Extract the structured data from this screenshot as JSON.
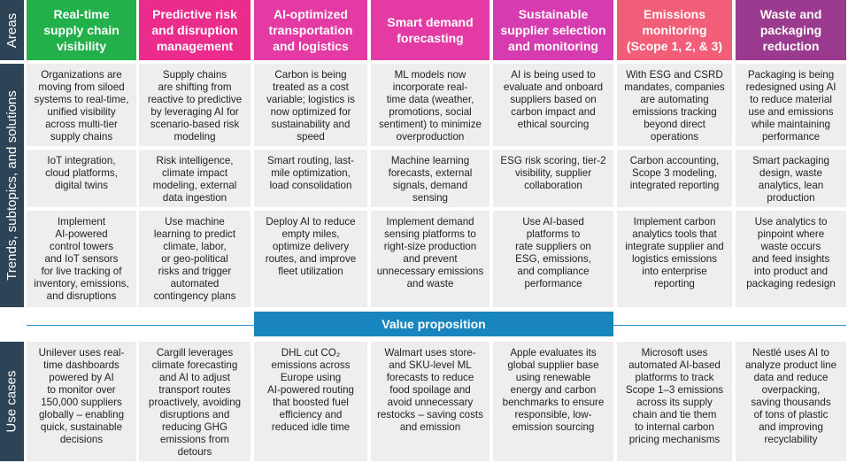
{
  "sidebar": {
    "areas": "Areas",
    "trends": "Trends, subtopics, and solutions",
    "use_cases": "Use cases"
  },
  "areas": [
    {
      "title": "Real-time\nsupply chain\nvisibility",
      "color": "#21b04a"
    },
    {
      "title": "Predictive risk\nand disruption\nmanagement",
      "color": "#ec2c8c"
    },
    {
      "title": "AI-optimized\ntransportation\nand logistics",
      "color": "#e33aa3"
    },
    {
      "title": "Smart demand\nforecasting",
      "color": "#e33aa3"
    },
    {
      "title": "Sustainable\nsupplier selection\nand monitoring",
      "color": "#d73bb0"
    },
    {
      "title": "Emissions\nmonitoring\n(Scope 1, 2, & 3)",
      "color": "#f25d78"
    },
    {
      "title": "Waste and\npackaging\nreduction",
      "color": "#9b3b8f"
    }
  ],
  "trends": [
    {
      "row1": "Organizations are\nmoving from siloed\nsystems to real-time,\nunified visibility\nacross multi-tier\nsupply chains",
      "row2": "IoT integration,\ncloud platforms,\ndigital twins",
      "row3": "Implement\nAI-powered\ncontrol towers\nand IoT sensors\nfor live tracking of\ninventory, emissions,\nand disruptions"
    },
    {
      "row1": "Supply chains\nare shifting from\nreactive to predictive\nby leveraging AI for\nscenario-based risk\nmodeling",
      "row2": "Risk intelligence,\nclimate impact\nmodeling, external\ndata ingestion",
      "row3": "Use machine\nlearning to predict\nclimate, labor,\nor geo-political\nrisks and trigger\nautomated\ncontingency plans"
    },
    {
      "row1": "Carbon is being\ntreated as a cost\nvariable; logistics is\nnow optimized for\nsustainability and\nspeed",
      "row2": "Smart routing, last-\nmile optimization,\nload consolidation",
      "row3": "Deploy AI to reduce\nempty miles,\noptimize delivery\nroutes, and improve\nfleet utilization"
    },
    {
      "row1": "ML models now\nincorporate real-\ntime data (weather,\npromotions, social\nsentiment) to minimize\noverproduction",
      "row2": "Machine learning\nforecasts, external\nsignals, demand\nsensing",
      "row3": "Implement demand\nsensing platforms to\nright-size production\nand prevent\nunnecessary emissions\nand waste"
    },
    {
      "row1": "AI is being used to\nevaluate and onboard\nsuppliers based on\ncarbon impact and\nethical sourcing",
      "row2": "ESG risk scoring, tier-2\nvisibility, supplier\ncollaboration",
      "row3": "Use AI-based\nplatforms to\nrate suppliers on\nESG, emissions,\nand compliance\nperformance"
    },
    {
      "row1": "With ESG and CSRD\nmandates, companies\nare automating\nemissions tracking\nbeyond direct\noperations",
      "row2": "Carbon accounting,\nScope 3 modeling,\nintegrated reporting",
      "row3": "Implement carbon\nanalytics tools that\nintegrate supplier and\nlogistics emissions\ninto enterprise\nreporting"
    },
    {
      "row1": "Packaging is being\nredesigned using AI\nto reduce material\nuse and emissions\nwhile maintaining\nperformance",
      "row2": "Smart packaging\ndesign, waste\nanalytics, lean\nproduction",
      "row3": "Use analytics to\npinpoint where\nwaste occurs\nand feed insights\ninto product and\npackaging redesign"
    }
  ],
  "value_proposition": "Value proposition",
  "use_cases": [
    "Unilever uses real-\ntime dashboards\npowered by AI\nto monitor over\n150,000 suppliers\nglobally – enabling\nquick, sustainable\ndecisions",
    "Cargill leverages\nclimate forecasting\nand AI to adjust\ntransport routes\nproactively, avoiding\ndisruptions and\nreducing GHG\nemissions from\ndetours",
    "DHL cut CO₂\nemissions across\nEurope using\nAI-powered routing\nthat boosted fuel\nefficiency and\nreduced idle time",
    "Walmart uses store-\nand SKU-level ML\nforecasts to reduce\nfood spoilage and\navoid unnecessary\nrestocks – saving costs\nand emission",
    "Apple evaluates its\nglobal supplier base\nusing renewable\nenergy and carbon\nbenchmarks to ensure\nresponsible, low-\nemission sourcing",
    "Microsoft uses\nautomated AI-based\nplatforms to track\nScope 1–3 emissions\nacross its supply\nchain and tie them\nto internal carbon\npricing mechanisms",
    "Nestlé uses AI to\nanalyze product line\ndata and reduce\noverpacking,\nsaving thousands\nof tons of plastic\nand improving\nrecyclability"
  ]
}
